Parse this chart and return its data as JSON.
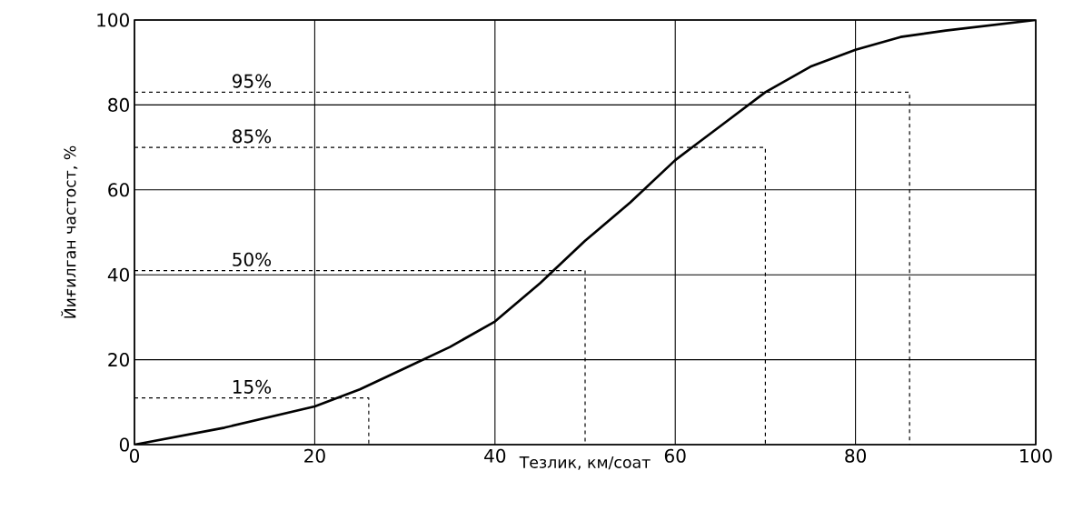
{
  "chart_data": {
    "type": "line",
    "xlabel": "Тезлик, км/соат",
    "ylabel": "Йиғилган частост, %",
    "xlim": [
      0,
      100
    ],
    "ylim": [
      0,
      100
    ],
    "xticks": [
      0,
      20,
      40,
      60,
      80,
      100
    ],
    "yticks": [
      0,
      20,
      40,
      60,
      80,
      100
    ],
    "grid": true,
    "marker": "none",
    "series": [
      {
        "color": "#000000",
        "line_style": "solid",
        "x": [
          0,
          10,
          20,
          25,
          30,
          35,
          40,
          45,
          50,
          55,
          60,
          65,
          70,
          75,
          80,
          85,
          90,
          100
        ],
        "values": [
          0,
          4,
          9,
          13,
          18,
          23,
          29,
          38,
          48,
          57,
          67,
          75,
          83,
          89,
          93,
          96,
          97.5,
          100
        ]
      },
      {
        "color": "#000000",
        "line_style": "dashed",
        "x": [
          0,
          86,
          86
        ],
        "values": [
          83,
          83,
          0
        ]
      },
      {
        "color": "#000000",
        "line_style": "dashed",
        "x": [
          0,
          70,
          70
        ],
        "values": [
          70,
          70,
          0
        ]
      },
      {
        "color": "#000000",
        "line_style": "dashed",
        "x": [
          0,
          50,
          50
        ],
        "values": [
          41,
          41,
          0
        ]
      },
      {
        "color": "#000000",
        "line_style": "dashed",
        "x": [
          0,
          26,
          26
        ],
        "values": [
          11,
          11,
          0
        ]
      }
    ],
    "annotations": [
      "95%",
      "85%",
      "50%",
      "15%"
    ]
  }
}
